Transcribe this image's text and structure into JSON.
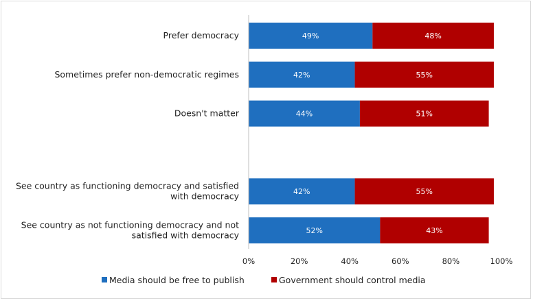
{
  "chart_data": {
    "type": "bar",
    "orientation": "horizontal",
    "stacked": true,
    "categories": [
      [
        "Prefer democracy"
      ],
      [
        "Sometimes prefer non-democratic regimes"
      ],
      [
        "Doesn't matter"
      ],
      [],
      [
        "See country as functioning democracy and satisfied",
        "with democracy"
      ],
      [
        "See country as not functioning democracy and not",
        "satisfied with democracy"
      ]
    ],
    "series": [
      {
        "name": "Media should be free to publish",
        "color": "#1f6fbf",
        "values": [
          49,
          42,
          44,
          null,
          42,
          52
        ]
      },
      {
        "name": "Government should control media",
        "color": "#b00000",
        "values": [
          48,
          55,
          51,
          null,
          55,
          43
        ]
      }
    ],
    "xlim": [
      0,
      100
    ],
    "x_ticks": [
      "0%",
      "20%",
      "40%",
      "60%",
      "80%",
      "100%"
    ],
    "grid": false,
    "legend": "bottom"
  }
}
